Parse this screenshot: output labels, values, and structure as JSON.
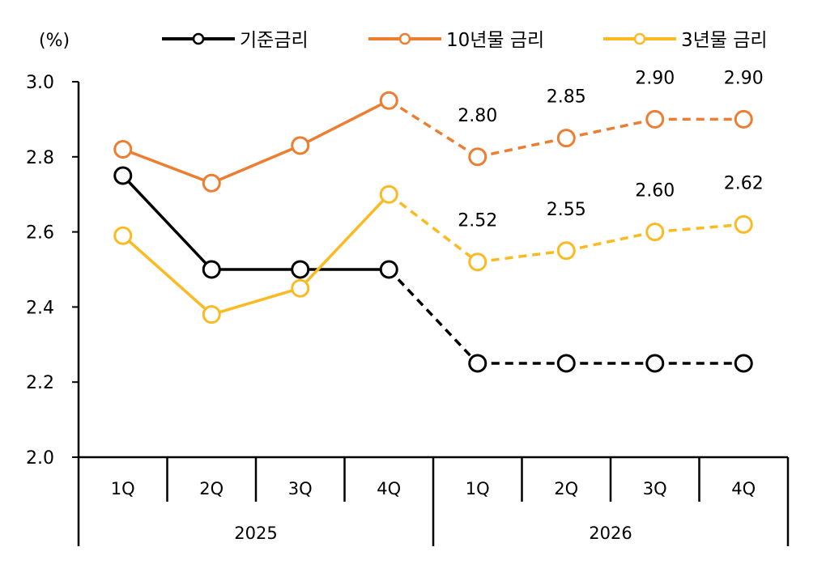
{
  "chart_data": {
    "type": "line",
    "unit_label": "(%)",
    "ylim": [
      2.0,
      3.0
    ],
    "yticks": [
      "2.0",
      "2.2",
      "2.4",
      "2.6",
      "2.8",
      "3.0"
    ],
    "categories": [
      "1Q",
      "2Q",
      "3Q",
      "4Q",
      "1Q",
      "2Q",
      "3Q",
      "4Q"
    ],
    "groups": [
      {
        "label": "2025",
        "span": 4
      },
      {
        "label": "2026",
        "span": 4
      }
    ],
    "forecast_start_index": 3,
    "grid": false,
    "legend_placement": "top",
    "series": [
      {
        "name": "기준금리",
        "color": "#000000",
        "values": [
          2.75,
          2.5,
          2.5,
          2.5,
          2.25,
          2.25,
          2.25,
          2.25
        ],
        "labels": [
          "",
          "",
          "",
          "",
          "",
          "",
          "",
          ""
        ]
      },
      {
        "name": "10년물 금리",
        "color": "#ED7D31",
        "values": [
          2.82,
          2.73,
          2.83,
          2.95,
          2.8,
          2.85,
          2.9,
          2.9
        ],
        "labels": [
          "",
          "",
          "",
          "",
          "2.80",
          "2.85",
          "2.90",
          "2.90"
        ]
      },
      {
        "name": "3년물 금리",
        "color": "#FBBA22",
        "values": [
          2.59,
          2.38,
          2.45,
          2.7,
          2.52,
          2.55,
          2.6,
          2.62
        ],
        "labels": [
          "",
          "",
          "",
          "",
          "2.52",
          "2.55",
          "2.60",
          "2.62"
        ]
      }
    ]
  }
}
